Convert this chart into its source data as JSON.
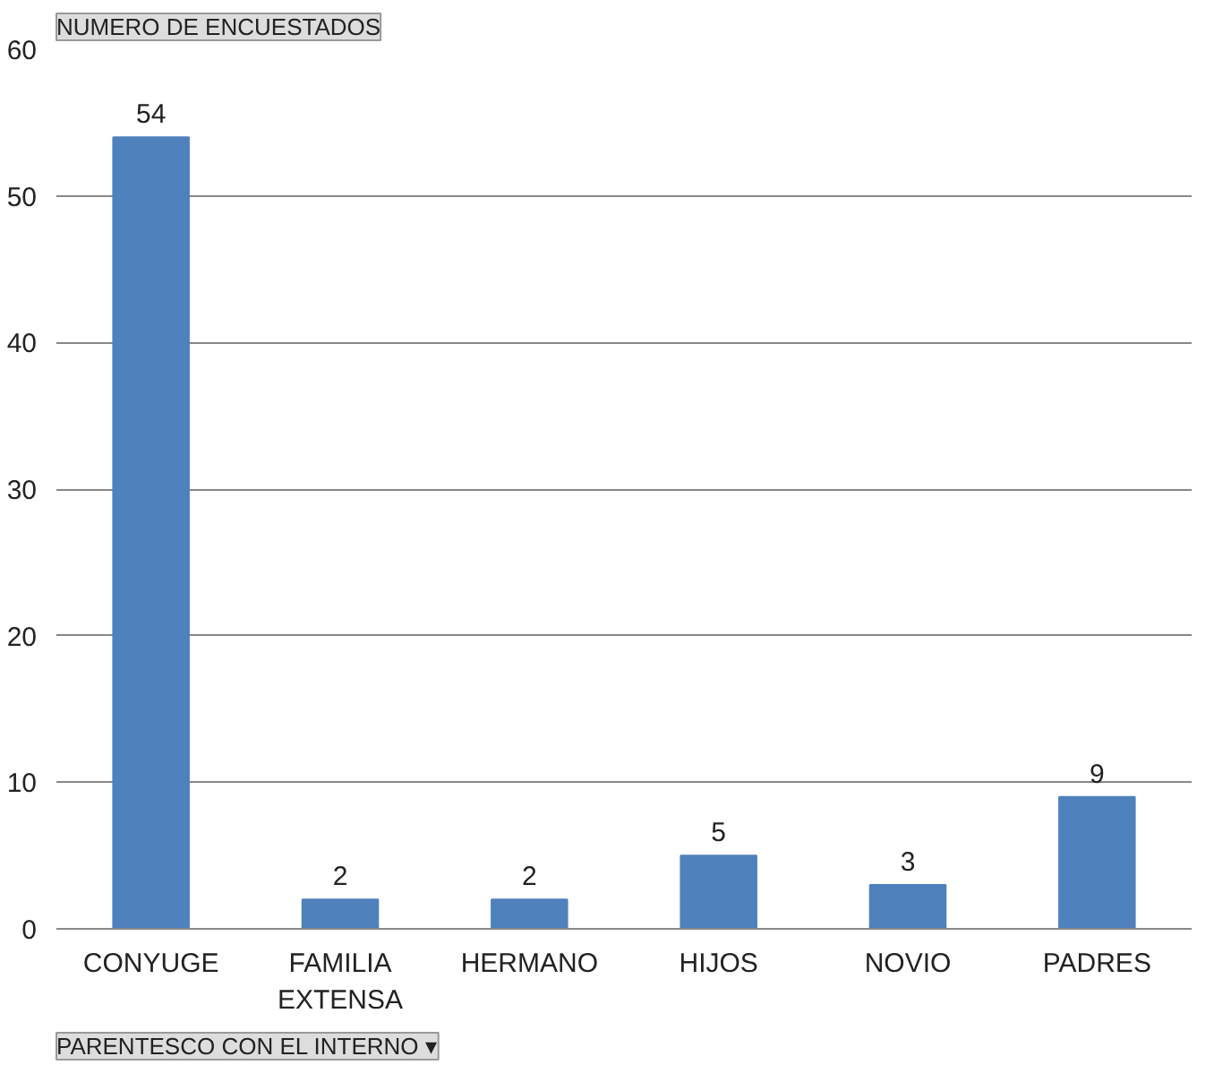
{
  "chart_data": {
    "type": "bar",
    "ylabel": "NUMERO DE ENCUESTADOS",
    "xlabel": "PARENTESCO CON EL INTERNO ▾",
    "categories": [
      "CONYUGE",
      "FAMILIA EXTENSA",
      "HERMANO",
      "HIJOS",
      "NOVIO",
      "PADRES"
    ],
    "values": [
      54,
      2,
      2,
      5,
      3,
      9
    ],
    "color": "#4f81bd",
    "ylim": [
      0,
      60
    ],
    "yticks": [
      0,
      10,
      20,
      30,
      40,
      50,
      60
    ],
    "grid": "y",
    "data_labels": true
  }
}
